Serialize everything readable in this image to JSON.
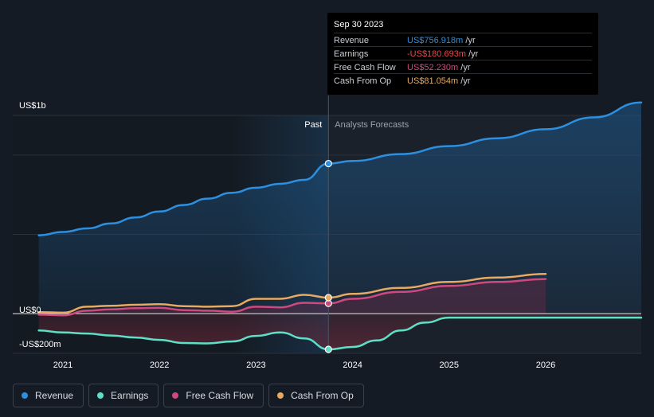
{
  "colors": {
    "revenue": "#2d8fe0",
    "earnings": "#5ee0c7",
    "free_cash_flow": "#d0497e",
    "cash_from_op": "#e8a960",
    "background": "#151b24",
    "forecast_background": "#1a212b"
  },
  "tooltip": {
    "date": "Sep 30 2023",
    "rows": [
      {
        "label": "Revenue",
        "value": "US$756.918m",
        "unit": "/yr",
        "color": "#2d8fe0"
      },
      {
        "label": "Earnings",
        "value": "-US$180.693m",
        "unit": "/yr",
        "color": "#e5484d"
      },
      {
        "label": "Free Cash Flow",
        "value": "US$52.230m",
        "unit": "/yr",
        "color": "#d0497e"
      },
      {
        "label": "Cash From Op",
        "value": "US$81.054m",
        "unit": "/yr",
        "color": "#e8a960"
      }
    ]
  },
  "chart_data": {
    "type": "line",
    "divider_label_past": "Past",
    "divider_label_forecast": "Analysts Forecasts",
    "divider_x": 2023.75,
    "ylim": [
      -200,
      1000
    ],
    "xlim": [
      2020.5,
      2026.99
    ],
    "y_tick_labels": [
      {
        "value": 1000,
        "label": "US$1b"
      },
      {
        "value": 0,
        "label": "US$0"
      },
      {
        "value": -200,
        "label": "-US$200m"
      }
    ],
    "x_tick_labels": [
      "2021",
      "2022",
      "2023",
      "2024",
      "2025",
      "2026"
    ],
    "series": [
      {
        "name": "Revenue",
        "key": "revenue",
        "x": [
          2020.75,
          2021.0,
          2021.25,
          2021.5,
          2021.75,
          2022.0,
          2022.25,
          2022.5,
          2022.75,
          2023.0,
          2023.25,
          2023.5,
          2023.75,
          2024.0,
          2024.5,
          2025.0,
          2025.5,
          2026.0,
          2026.5,
          2026.99
        ],
        "y": [
          395,
          412,
          430,
          455,
          485,
          515,
          548,
          580,
          610,
          635,
          655,
          675,
          757,
          770,
          805,
          845,
          885,
          930,
          990,
          1065
        ]
      },
      {
        "name": "Earnings",
        "key": "earnings",
        "x": [
          2020.75,
          2021.0,
          2021.25,
          2021.5,
          2021.75,
          2022.0,
          2022.25,
          2022.5,
          2022.75,
          2023.0,
          2023.25,
          2023.5,
          2023.75,
          2024.0,
          2024.25,
          2024.5,
          2024.75,
          2025.0,
          2025.5,
          2026.0,
          2026.5,
          2026.99
        ],
        "y": [
          -85,
          -95,
          -100,
          -110,
          -120,
          -132,
          -148,
          -150,
          -140,
          -112,
          -95,
          -125,
          -180,
          -168,
          -135,
          -85,
          -45,
          -20,
          -20,
          -20,
          -20,
          -20
        ]
      },
      {
        "name": "Free Cash Flow",
        "key": "free_cash_flow",
        "x": [
          2020.75,
          2021.0,
          2021.25,
          2021.5,
          2021.75,
          2022.0,
          2022.25,
          2022.5,
          2022.75,
          2023.0,
          2023.25,
          2023.5,
          2023.75,
          2024.0,
          2024.5,
          2025.0,
          2025.5,
          2026.0
        ],
        "y": [
          -5,
          -8,
          15,
          22,
          28,
          30,
          18,
          15,
          10,
          35,
          32,
          55,
          52,
          75,
          110,
          140,
          160,
          175
        ]
      },
      {
        "name": "Cash From Op",
        "key": "cash_from_op",
        "x": [
          2020.75,
          2021.0,
          2021.25,
          2021.5,
          2021.75,
          2022.0,
          2022.25,
          2022.5,
          2022.75,
          2023.0,
          2023.25,
          2023.5,
          2023.75,
          2024.0,
          2024.5,
          2025.0,
          2025.5,
          2026.0
        ],
        "y": [
          8,
          5,
          35,
          40,
          45,
          48,
          38,
          35,
          38,
          75,
          75,
          95,
          81,
          100,
          130,
          160,
          182,
          200
        ]
      }
    ]
  },
  "legend": [
    {
      "label": "Revenue",
      "key": "revenue"
    },
    {
      "label": "Earnings",
      "key": "earnings"
    },
    {
      "label": "Free Cash Flow",
      "key": "free_cash_flow"
    },
    {
      "label": "Cash From Op",
      "key": "cash_from_op"
    }
  ]
}
